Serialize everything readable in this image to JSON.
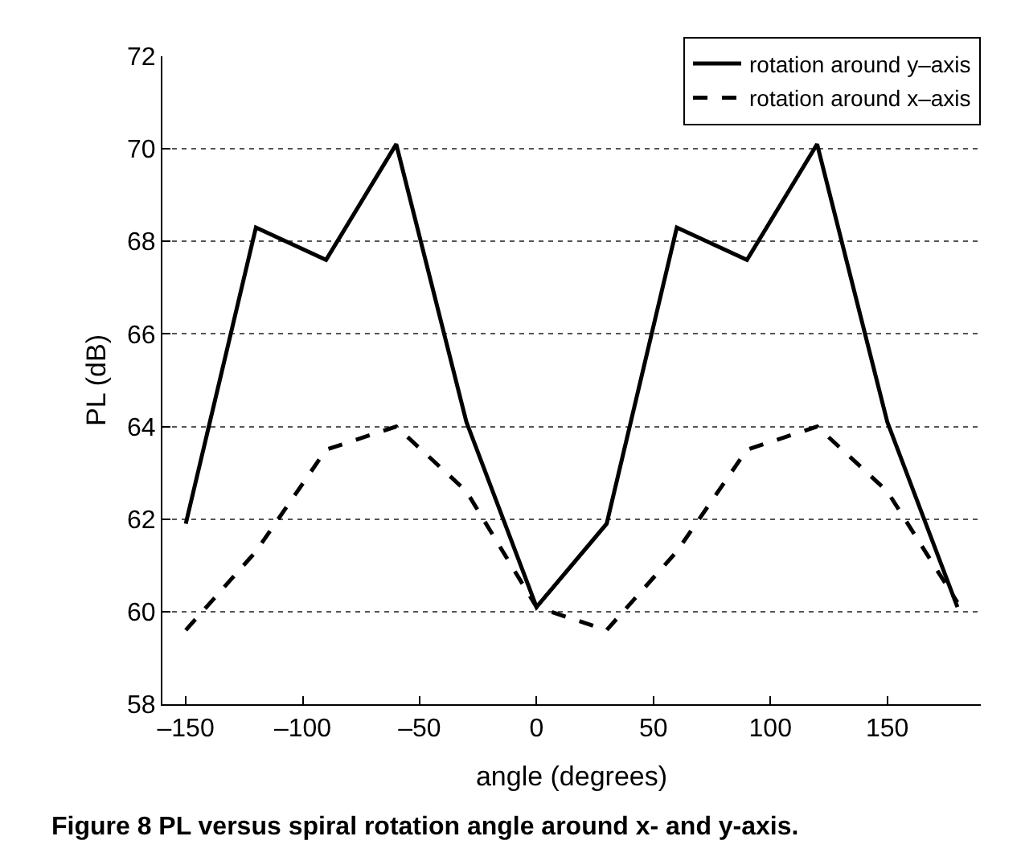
{
  "chart_data": {
    "type": "line",
    "xlabel": "angle (degrees)",
    "ylabel": "PL (dB)",
    "x": [
      -150,
      -120,
      -90,
      -60,
      -30,
      0,
      30,
      60,
      90,
      120,
      150,
      180
    ],
    "series": [
      {
        "name": "rotation around y–axis",
        "color": "#000000",
        "line_style": "solid",
        "values": [
          61.9,
          68.3,
          67.6,
          70.1,
          64.1,
          60.1,
          61.9,
          68.3,
          67.6,
          70.1,
          64.1,
          60.1
        ]
      },
      {
        "name": "rotation around x–axis",
        "color": "#000000",
        "line_style": "dashed",
        "values": [
          59.6,
          61.3,
          63.5,
          64.0,
          62.6,
          60.1,
          59.6,
          61.3,
          63.5,
          64.0,
          62.6,
          60.2
        ]
      }
    ],
    "xlim": [
      -160,
      190
    ],
    "xticks": [
      {
        "value": -150,
        "label": "–150"
      },
      {
        "value": -100,
        "label": "–100"
      },
      {
        "value": -50,
        "label": "–50"
      },
      0,
      50,
      100,
      150
    ],
    "ylim": [
      58,
      72
    ],
    "yticks": [
      58,
      60,
      62,
      64,
      66,
      68,
      70,
      72
    ],
    "grid": "y",
    "legend": "top right",
    "marker": "none",
    "annotations": [
      "Figure 8 PL versus spiral rotation angle around x- and y-axis."
    ]
  }
}
